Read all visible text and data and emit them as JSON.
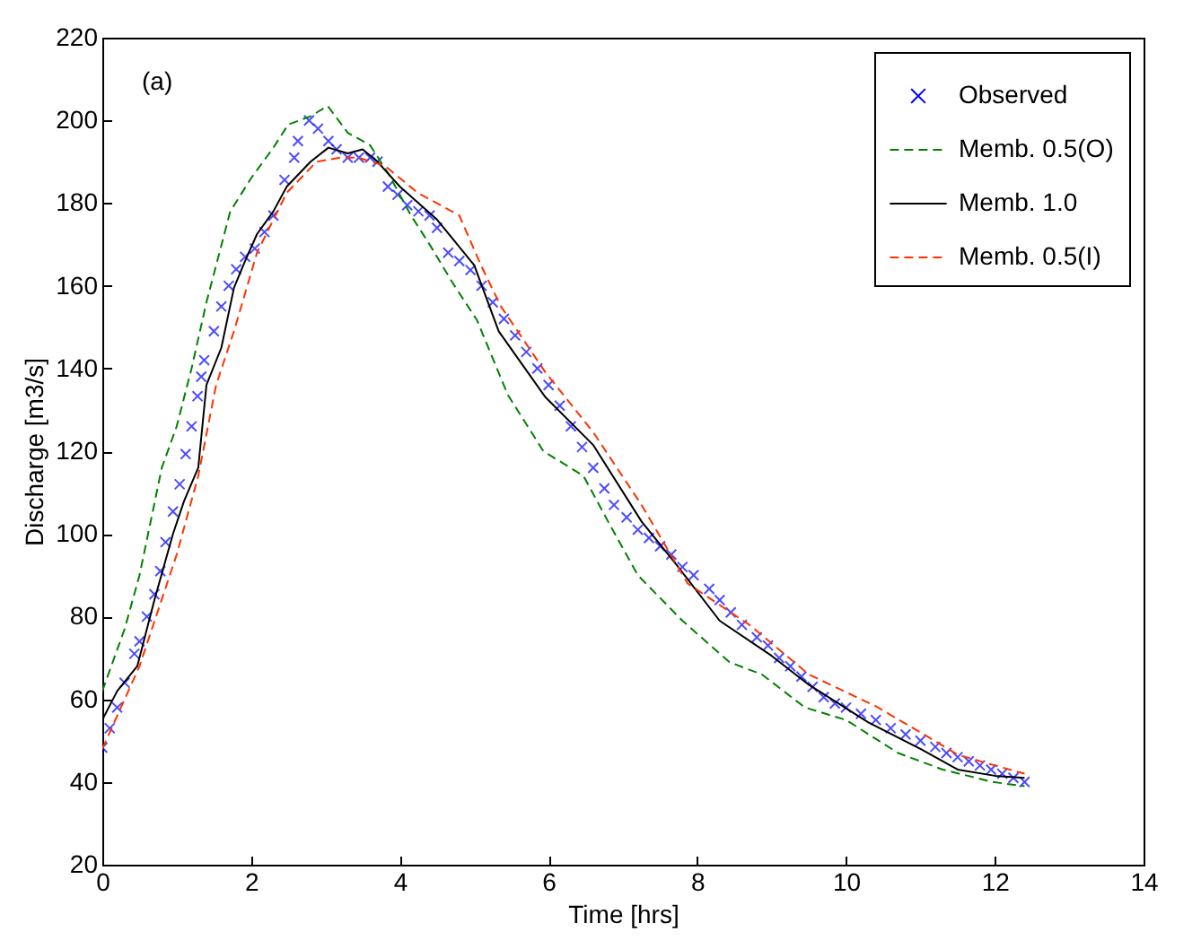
{
  "chart_data": {
    "type": "line",
    "xlabel": "Time [hrs]",
    "ylabel": "Discharge [m3/s]",
    "annotations": [
      "(a)"
    ],
    "xlim": [
      0,
      14
    ],
    "xticks": [
      0,
      2,
      4,
      6,
      8,
      10,
      12,
      14
    ],
    "ylim": [
      20,
      220
    ],
    "yticks": [
      20,
      40,
      60,
      80,
      100,
      120,
      140,
      160,
      180,
      200,
      220
    ],
    "grid": false,
    "legend": "top right",
    "series": [
      {
        "name": "Observed",
        "type": "scatter",
        "marker": "cross",
        "color": "#0000ff",
        "x": [
          0,
          0.1,
          0.2,
          0.3,
          0.43,
          0.5,
          0.6,
          0.7,
          0.78,
          0.85,
          0.95,
          1.04,
          1.12,
          1.2,
          1.28,
          1.33,
          1.37,
          1.5,
          1.6,
          1.7,
          1.8,
          1.92,
          2.05,
          2.18,
          2.3,
          2.45,
          2.58,
          2.63,
          2.78,
          2.9,
          3.04,
          3.15,
          3.3,
          3.45,
          3.6,
          3.7,
          3.84,
          3.97,
          4.1,
          4.25,
          4.4,
          4.5,
          4.65,
          4.8,
          4.95,
          5.1,
          5.25,
          5.4,
          5.55,
          5.7,
          5.85,
          6.0,
          6.15,
          6.3,
          6.45,
          6.6,
          6.75,
          6.88,
          7.05,
          7.2,
          7.35,
          7.5,
          7.65,
          7.8,
          7.95,
          8.16,
          8.3,
          8.45,
          8.6,
          8.8,
          8.95,
          9.1,
          9.25,
          9.4,
          9.55,
          9.7,
          9.85,
          10.0,
          10.2,
          10.4,
          10.6,
          10.8,
          11.0,
          11.2,
          11.35,
          11.5,
          11.65,
          11.8,
          11.95,
          12.1,
          12.25,
          12.4
        ],
        "values": [
          48.3,
          53,
          58,
          64,
          71,
          74,
          80,
          85.4,
          91,
          98,
          105.4,
          112,
          119.3,
          126,
          133.3,
          138,
          142,
          149,
          155,
          160,
          164,
          167,
          169,
          173,
          177,
          185.6,
          191,
          195,
          200,
          198,
          195,
          193,
          191,
          191,
          191,
          190,
          184,
          182,
          179.5,
          178,
          177,
          174,
          168,
          166,
          163.8,
          160,
          156,
          152,
          148,
          144,
          140,
          136,
          131,
          126,
          121,
          116,
          111,
          107,
          104,
          101,
          99,
          97,
          95,
          92,
          90,
          86.7,
          84,
          81,
          78,
          75,
          73,
          70,
          68,
          65.5,
          63,
          60.5,
          59,
          58,
          56.5,
          55,
          53,
          51.5,
          50,
          48.5,
          47,
          46,
          45,
          44,
          43,
          42,
          41,
          40
        ]
      },
      {
        "name": "Memb. 0.5(O)",
        "line_style": "dashed",
        "color": "#008000",
        "x": [
          0,
          0.3,
          0.5,
          0.8,
          1.0,
          1.2,
          1.4,
          1.72,
          2.0,
          2.3,
          2.5,
          2.8,
          3.03,
          3.3,
          3.6,
          3.85,
          4.15,
          4.4,
          4.7,
          5.04,
          5.45,
          5.93,
          6.47,
          6.8,
          7.2,
          7.8,
          8.43,
          8.87,
          9.45,
          10.0,
          10.7,
          11.3,
          11.97,
          12.4
        ],
        "values": [
          62,
          77,
          90,
          116,
          126,
          140,
          156,
          178,
          186,
          193.4,
          199,
          201,
          203.5,
          197,
          194,
          187,
          177,
          170,
          161,
          151.6,
          133.7,
          120,
          114,
          103,
          90,
          79,
          69,
          66,
          58,
          55,
          47,
          43,
          40,
          39
        ]
      },
      {
        "name": "Memb. 1.0",
        "line_style": "solid",
        "color": "#000000",
        "x": [
          0,
          0.2,
          0.47,
          0.7,
          0.95,
          1.1,
          1.29,
          1.4,
          1.6,
          1.77,
          1.92,
          2.08,
          2.3,
          2.48,
          2.8,
          3.04,
          3.3,
          3.5,
          3.7,
          4.0,
          4.5,
          5.0,
          5.33,
          5.96,
          6.6,
          7.25,
          7.73,
          8.3,
          9.0,
          9.5,
          10.3,
          11.0,
          11.5,
          12.0,
          12.4
        ],
        "values": [
          55,
          62,
          68,
          84,
          100,
          108,
          116,
          136,
          145,
          159.5,
          166,
          172.5,
          178,
          184,
          190,
          193.4,
          192,
          193,
          190,
          184,
          176,
          165,
          149,
          133,
          121.5,
          103,
          92.3,
          79,
          70.5,
          63.5,
          54.4,
          48,
          43,
          41.5,
          41
        ]
      },
      {
        "name": "Memb. 0.5(I)",
        "line_style": "dashed",
        "color": "#ff3300",
        "x": [
          0,
          0.5,
          1.0,
          1.29,
          1.53,
          1.77,
          2.08,
          2.48,
          2.88,
          3.2,
          3.44,
          3.8,
          4.24,
          4.8,
          5.09,
          5.36,
          5.96,
          6.6,
          7.25,
          7.87,
          8.7,
          9.5,
          10.4,
          11.0,
          11.5,
          12.0,
          12.4
        ],
        "values": [
          48,
          68,
          95,
          114,
          136,
          149,
          168,
          182.5,
          190,
          191,
          191,
          189,
          182.5,
          177,
          165,
          155,
          139,
          124.6,
          107,
          88,
          78,
          66,
          58.3,
          52,
          46.6,
          44,
          42
        ]
      }
    ]
  }
}
